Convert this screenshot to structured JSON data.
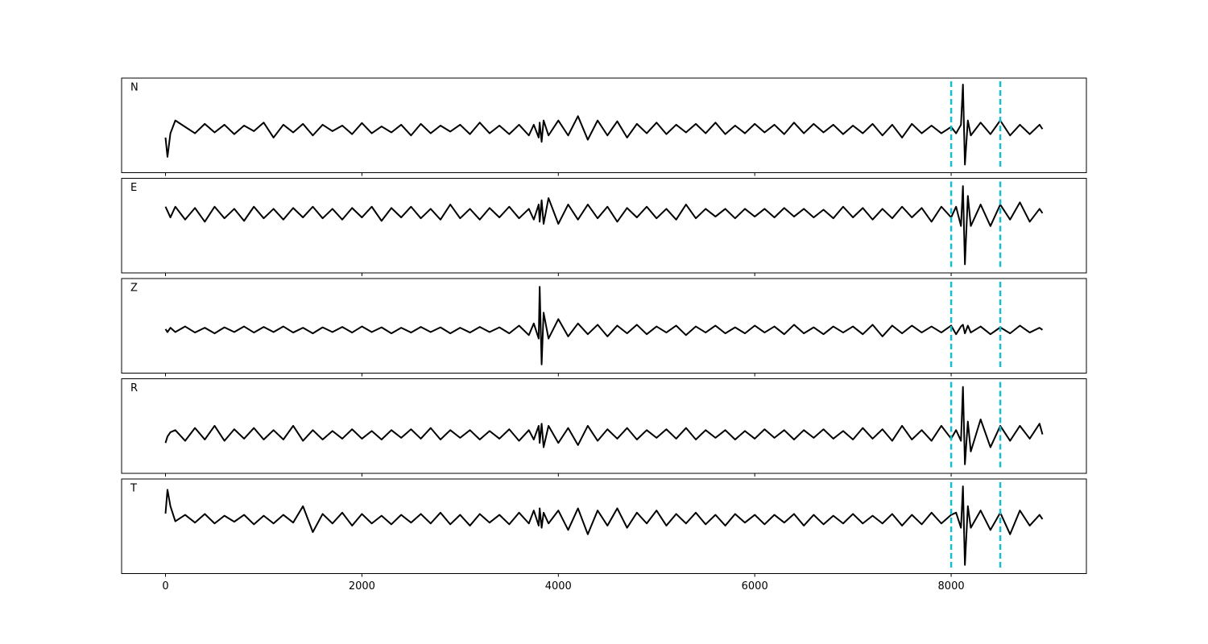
{
  "chart_data": {
    "type": "line",
    "color": "#000000",
    "x": [
      0,
      20,
      50,
      100,
      200,
      300,
      400,
      500,
      600,
      700,
      800,
      900,
      1000,
      1100,
      1200,
      1300,
      1400,
      1500,
      1600,
      1700,
      1800,
      1900,
      2000,
      2100,
      2200,
      2300,
      2400,
      2500,
      2600,
      2700,
      2800,
      2900,
      3000,
      3100,
      3200,
      3300,
      3400,
      3500,
      3600,
      3700,
      3750,
      3800,
      3810,
      3830,
      3850,
      3900,
      4000,
      4100,
      4200,
      4300,
      4400,
      4500,
      4600,
      4700,
      4800,
      4900,
      5000,
      5100,
      5200,
      5300,
      5400,
      5500,
      5600,
      5700,
      5800,
      5900,
      6000,
      6100,
      6200,
      6300,
      6400,
      6500,
      6600,
      6700,
      6800,
      6900,
      7000,
      7100,
      7200,
      7300,
      7400,
      7500,
      7600,
      7700,
      7800,
      7900,
      8000,
      8050,
      8100,
      8120,
      8140,
      8170,
      8200,
      8300,
      8400,
      8500,
      8600,
      8700,
      8800,
      8900,
      8930
    ],
    "xlim": [
      -447,
      9377
    ],
    "xticks": [
      0,
      2000,
      4000,
      6000,
      8000
    ],
    "vlines": [
      8000,
      8500
    ],
    "vline_color": "#17becf",
    "series": [
      {
        "name": "N",
        "ylim": [
          -1.02,
          1.19
        ],
        "values": [
          -0.2,
          -0.65,
          -0.1,
          0.2,
          0.05,
          -0.1,
          0.12,
          -0.08,
          0.1,
          -0.12,
          0.08,
          -0.05,
          0.15,
          -0.2,
          0.1,
          -0.08,
          0.12,
          -0.15,
          0.1,
          -0.05,
          0.08,
          -0.12,
          0.14,
          -0.1,
          0.06,
          -0.08,
          0.1,
          -0.15,
          0.12,
          -0.1,
          0.08,
          -0.06,
          0.1,
          -0.12,
          0.15,
          -0.1,
          0.08,
          -0.12,
          0.1,
          -0.15,
          0.1,
          -0.2,
          0.15,
          -0.3,
          0.2,
          -0.15,
          0.2,
          -0.15,
          0.3,
          -0.25,
          0.2,
          -0.15,
          0.18,
          -0.2,
          0.12,
          -0.1,
          0.15,
          -0.12,
          0.1,
          -0.08,
          0.12,
          -0.1,
          0.15,
          -0.12,
          0.08,
          -0.1,
          0.12,
          -0.08,
          0.1,
          -0.12,
          0.15,
          -0.1,
          0.12,
          -0.08,
          0.1,
          -0.12,
          0.08,
          -0.1,
          0.12,
          -0.15,
          0.1,
          -0.2,
          0.12,
          -0.1,
          0.08,
          -0.1,
          0.05,
          -0.1,
          0.1,
          1.04,
          -0.83,
          0.2,
          -0.15,
          0.15,
          -0.12,
          0.2,
          -0.15,
          0.1,
          -0.12,
          0.1,
          0.0
        ]
      },
      {
        "name": "E",
        "ylim": [
          -1.39,
          0.81
        ],
        "values": [
          0.15,
          0.05,
          -0.1,
          0.15,
          -0.15,
          0.12,
          -0.2,
          0.15,
          -0.12,
          0.1,
          -0.18,
          0.15,
          -0.12,
          0.1,
          -0.15,
          0.12,
          -0.1,
          0.15,
          -0.12,
          0.1,
          -0.15,
          0.12,
          -0.1,
          0.15,
          -0.18,
          0.12,
          -0.1,
          0.15,
          -0.12,
          0.1,
          -0.15,
          0.2,
          -0.12,
          0.1,
          -0.15,
          0.12,
          -0.1,
          0.15,
          -0.12,
          0.1,
          -0.15,
          0.2,
          -0.2,
          0.3,
          -0.25,
          0.35,
          -0.25,
          0.2,
          -0.15,
          0.2,
          -0.12,
          0.15,
          -0.2,
          0.12,
          -0.1,
          0.15,
          -0.12,
          0.1,
          -0.15,
          0.2,
          -0.12,
          0.1,
          -0.08,
          0.1,
          -0.12,
          0.1,
          -0.08,
          0.1,
          -0.1,
          0.12,
          -0.08,
          0.1,
          -0.1,
          0.08,
          -0.12,
          0.15,
          -0.1,
          0.12,
          -0.15,
          0.1,
          -0.12,
          0.15,
          -0.1,
          0.12,
          -0.2,
          0.15,
          -0.1,
          0.15,
          -0.3,
          0.63,
          -1.19,
          0.4,
          -0.3,
          0.2,
          -0.3,
          0.2,
          -0.15,
          0.25,
          -0.2,
          0.1,
          0.0
        ]
      },
      {
        "name": "Z",
        "ylim": [
          -1.0,
          1.19
        ],
        "values": [
          0.02,
          -0.05,
          0.05,
          -0.05,
          0.08,
          -0.06,
          0.05,
          -0.08,
          0.06,
          -0.05,
          0.08,
          -0.06,
          0.07,
          -0.05,
          0.08,
          -0.06,
          0.05,
          -0.08,
          0.06,
          -0.05,
          0.07,
          -0.06,
          0.08,
          -0.05,
          0.06,
          -0.08,
          0.05,
          -0.06,
          0.07,
          -0.05,
          0.06,
          -0.08,
          0.05,
          -0.06,
          0.07,
          -0.05,
          0.06,
          -0.08,
          0.1,
          -0.12,
          0.15,
          -0.2,
          1.0,
          -0.8,
          0.4,
          -0.2,
          0.25,
          -0.15,
          0.15,
          -0.1,
          0.12,
          -0.15,
          0.1,
          -0.08,
          0.12,
          -0.1,
          0.08,
          -0.06,
          0.1,
          -0.12,
          0.08,
          -0.06,
          0.1,
          -0.08,
          0.06,
          -0.08,
          0.1,
          -0.06,
          0.08,
          -0.1,
          0.12,
          -0.08,
          0.06,
          -0.1,
          0.08,
          -0.06,
          0.08,
          -0.1,
          0.12,
          -0.15,
          0.1,
          -0.08,
          0.1,
          -0.06,
          0.08,
          -0.06,
          0.1,
          -0.1,
          0.08,
          0.12,
          -0.08,
          0.1,
          -0.06,
          0.08,
          -0.1,
          0.06,
          -0.08,
          0.1,
          -0.06,
          0.05,
          0.0
        ]
      },
      {
        "name": "R",
        "ylim": [
          -0.91,
          1.3
        ],
        "values": [
          -0.2,
          -0.05,
          0.05,
          0.1,
          -0.15,
          0.15,
          -0.12,
          0.2,
          -0.15,
          0.12,
          -0.1,
          0.15,
          -0.12,
          0.1,
          -0.12,
          0.2,
          -0.15,
          0.1,
          -0.12,
          0.08,
          -0.1,
          0.12,
          -0.1,
          0.08,
          -0.12,
          0.1,
          -0.08,
          0.12,
          -0.1,
          0.15,
          -0.12,
          0.1,
          -0.08,
          0.1,
          -0.12,
          0.08,
          -0.1,
          0.12,
          -0.15,
          0.1,
          -0.12,
          0.2,
          -0.2,
          0.25,
          -0.3,
          0.2,
          -0.2,
          0.15,
          -0.25,
          0.2,
          -0.15,
          0.12,
          -0.1,
          0.15,
          -0.12,
          0.1,
          -0.08,
          0.12,
          -0.1,
          0.15,
          -0.12,
          0.1,
          -0.08,
          0.1,
          -0.12,
          0.08,
          -0.1,
          0.12,
          -0.08,
          0.1,
          -0.12,
          0.1,
          -0.08,
          0.12,
          -0.1,
          0.08,
          -0.12,
          0.15,
          -0.1,
          0.12,
          -0.15,
          0.2,
          -0.12,
          0.1,
          -0.15,
          0.2,
          -0.1,
          0.1,
          -0.15,
          1.11,
          -0.7,
          0.3,
          -0.4,
          0.35,
          -0.3,
          0.2,
          -0.15,
          0.2,
          -0.1,
          0.25,
          0.0
        ]
      },
      {
        "name": "T",
        "ylim": [
          -1.26,
          0.93
        ],
        "values": [
          0.13,
          0.68,
          0.3,
          -0.05,
          0.1,
          -0.08,
          0.12,
          -0.1,
          0.08,
          -0.06,
          0.1,
          -0.12,
          0.08,
          -0.1,
          0.1,
          -0.08,
          0.3,
          -0.3,
          0.12,
          -0.1,
          0.15,
          -0.15,
          0.12,
          -0.1,
          0.08,
          -0.12,
          0.1,
          -0.08,
          0.12,
          -0.1,
          0.15,
          -0.12,
          0.1,
          -0.15,
          0.12,
          -0.08,
          0.1,
          -0.12,
          0.15,
          -0.1,
          0.2,
          -0.15,
          0.25,
          -0.2,
          0.15,
          -0.1,
          0.2,
          -0.25,
          0.25,
          -0.35,
          0.2,
          -0.15,
          0.25,
          -0.2,
          0.15,
          -0.1,
          0.2,
          -0.15,
          0.12,
          -0.1,
          0.15,
          -0.12,
          0.1,
          -0.15,
          0.12,
          -0.08,
          0.1,
          -0.12,
          0.1,
          -0.08,
          0.12,
          -0.15,
          0.1,
          -0.12,
          0.08,
          -0.1,
          0.12,
          -0.1,
          0.08,
          -0.1,
          0.12,
          -0.15,
          0.1,
          -0.12,
          0.15,
          -0.1,
          0.1,
          0.15,
          -0.2,
          0.76,
          -1.06,
          0.3,
          -0.2,
          0.2,
          -0.25,
          0.15,
          -0.35,
          0.2,
          -0.15,
          0.1,
          0.0
        ]
      }
    ]
  }
}
